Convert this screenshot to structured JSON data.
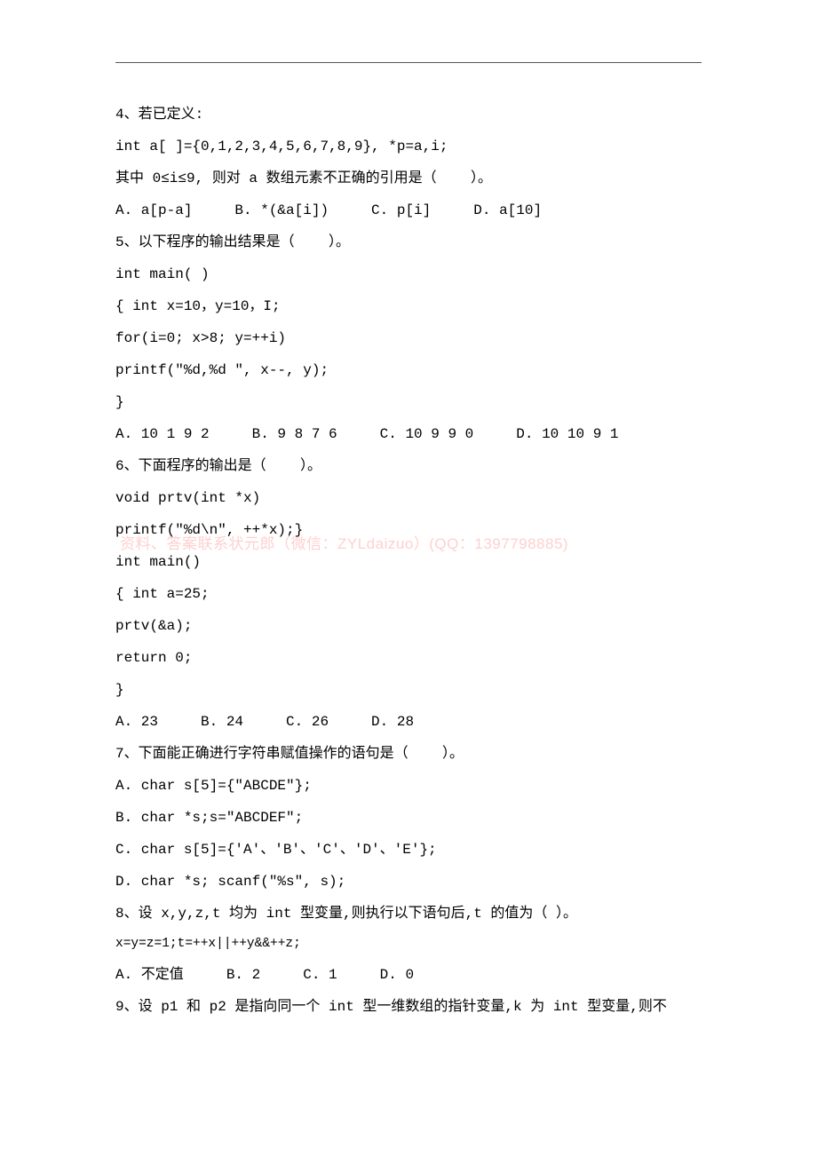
{
  "watermark": "资料、答案联系状元郎（微信：ZYLdaizuo）(QQ：1397798885)",
  "lines": [
    "4、若已定义:",
    "int a[ ]={0,1,2,3,4,5,6,7,8,9}, *p=a,i;",
    "其中 0≤i≤9, 则对 a 数组元素不正确的引用是（    ）。",
    "A. a[p-a]     B. *(&a[i])     C. p[i]     D. a[10]",
    "5、以下程序的输出结果是（    ）。",
    "int main( )",
    "{ int x=10，y=10，I;",
    "for(i=0; x>8; y=++i)",
    "printf(\"%d,%d \", x--, y);",
    "}",
    "A. 10 1 9 2     B. 9 8 7 6     C. 10 9 9 0     D. 10 10 9 1",
    "6、下面程序的输出是（    ）。",
    "void prtv(int *x)",
    "printf(\"%d\\n\", ++*x);}",
    "int main()",
    "{ int a=25;",
    "prtv(&a);",
    "return 0;",
    "}",
    "A. 23     B. 24     C. 26     D. 28",
    "7、下面能正确进行字符串赋值操作的语句是（    ）。",
    "A. char s[5]={\"ABCDE\"};",
    "B. char *s;s=\"ABCDEF\";",
    "C. char s[5]={'A'、'B'、'C'、'D'、'E'};",
    "D. char *s; scanf(\"%s\", s);",
    "8、设 x,y,z,t 均为 int 型变量,则执行以下语句后,t 的值为（ ）。",
    "x=y=z=1;t=++x||++y&&++z;",
    "A. 不定值     B. 2     C. 1     D. 0",
    "9、设 p1 和 p2 是指向同一个 int 型一维数组的指针变量,k 为 int 型变量,则不"
  ],
  "smallLineIndex": 26
}
